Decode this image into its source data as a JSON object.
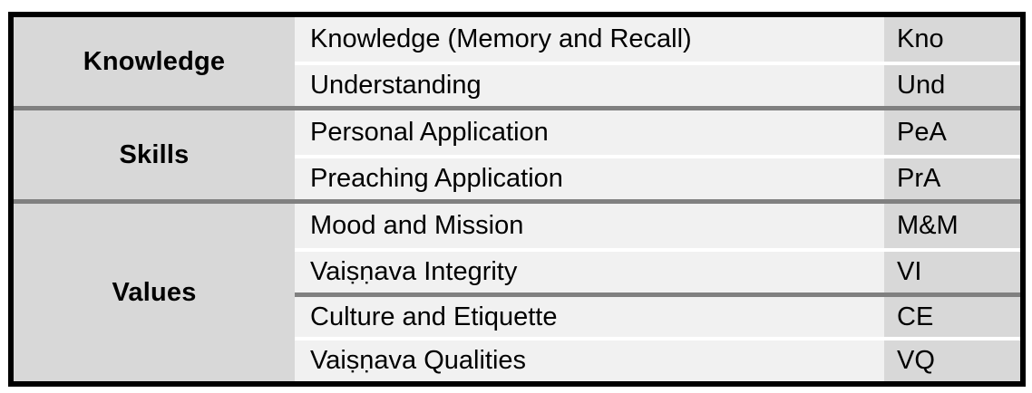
{
  "table": {
    "groups": [
      {
        "category": "Knowledge",
        "rows": [
          {
            "item": "Knowledge (Memory and Recall)",
            "abbr": "Kno"
          },
          {
            "item": "Understanding",
            "abbr": "Und"
          }
        ]
      },
      {
        "category": "Skills",
        "rows": [
          {
            "item": "Personal Application",
            "abbr": "PeA"
          },
          {
            "item": "Preaching Application",
            "abbr": "PrA"
          }
        ]
      },
      {
        "category": "Values",
        "rows": [
          {
            "item": "Mood and Mission",
            "abbr": "M&M"
          },
          {
            "item": "Vaiṣṇava Integrity",
            "abbr": "VI"
          },
          {
            "item": "Culture and Etiquette",
            "abbr": "CE"
          },
          {
            "item": "Vaiṣṇava Qualities",
            "abbr": "VQ"
          }
        ]
      }
    ],
    "colors": {
      "category_bg": "#d8d8d8",
      "item_bg": "#f1f1f1",
      "abbr_bg": "#d8d8d8",
      "row_separator": "#ffffff",
      "group_separator": "#808080",
      "border": "#000000"
    }
  }
}
